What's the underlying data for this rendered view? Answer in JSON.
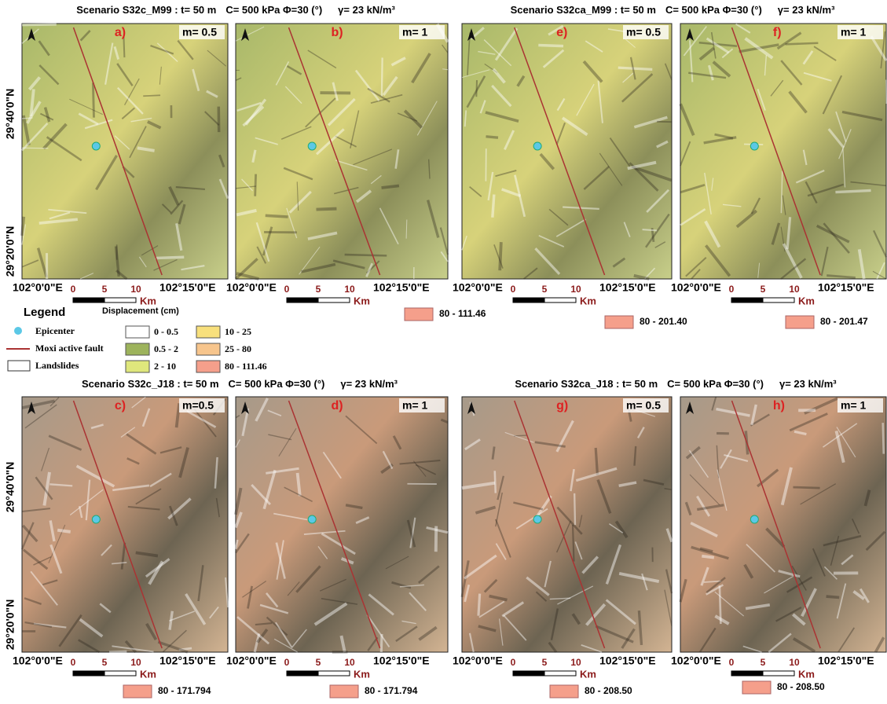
{
  "scenarios": [
    {
      "title": "Scenario S32c_M99 : t= 50 m",
      "params": "C= 500 kPa Φ=30 (°)",
      "gamma": "γ= 23 kN/m³"
    },
    {
      "title": "Scenario S32ca_M99 : t= 50 m",
      "params": "C= 500 kPa Φ=30 (°)",
      "gamma": "γ= 23 kN/m³"
    },
    {
      "title": "Scenario S32c_J18 : t= 50 m",
      "params": "C= 500 kPa Φ=30 (°)",
      "gamma": "γ= 23 kN/m³"
    },
    {
      "title": "Scenario S32ca_J18 : t= 50 m",
      "params": "C= 500 kPa Φ=30 (°)",
      "gamma": "γ= 23 kN/m³"
    }
  ],
  "panels": [
    {
      "letter": "a)",
      "m": "m= 0.5"
    },
    {
      "letter": "b)",
      "m": "m= 1",
      "max_class": "80 - 111.46"
    },
    {
      "letter": "e)",
      "m": "m= 0.5",
      "max_class": "80 - 201.40"
    },
    {
      "letter": "f)",
      "m": "m= 1",
      "max_class": "80 - 201.47"
    },
    {
      "letter": "c)",
      "m": "m=0.5",
      "max_class": "80 - 171.794"
    },
    {
      "letter": "d)",
      "m": "m= 1",
      "max_class": "80 - 171.794"
    },
    {
      "letter": "g)",
      "m": "m= 0.5",
      "max_class": "80 - 208.50"
    },
    {
      "letter": "h)",
      "m": "m= 1",
      "max_class": "80 - 208.50"
    }
  ],
  "map_labels": {
    "lat_north": "29°40'0\"N",
    "lat_south": "29°20'0\"N",
    "lon_west": "102°0'0\"E",
    "lon_east": "102°15'0\"E",
    "scale": [
      "0",
      "5",
      "10"
    ],
    "unit": "Km"
  },
  "legend": {
    "title": "Legend",
    "subtitle": "Displacement (cm)",
    "symbols": [
      "Epicenter",
      "Moxi active fault",
      "Landslides"
    ],
    "classes": [
      {
        "label": "0 - 0.5",
        "color": "#ffffff"
      },
      {
        "label": "0.5 - 2",
        "color": "#9db35c"
      },
      {
        "label": "2 - 10",
        "color": "#dfe77c"
      },
      {
        "label": "10 - 25",
        "color": "#f8e07c"
      },
      {
        "label": "25 - 80",
        "color": "#f7c58c"
      },
      {
        "label": "80 - 111.46",
        "color": "#f59f8b"
      }
    ]
  }
}
